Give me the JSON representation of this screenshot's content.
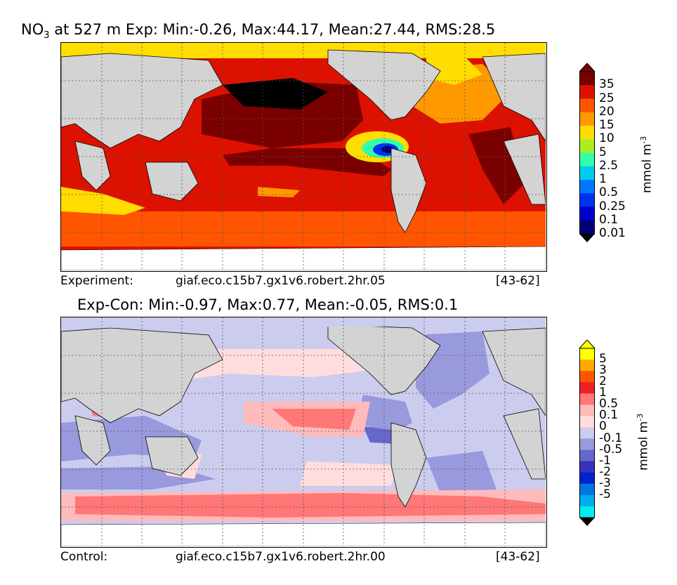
{
  "chart_data": [
    {
      "type": "heatmap",
      "title_prefix": "NO",
      "title_sub": "3",
      "title_rest": " at 527 m Exp: Min:-0.26, Max:44.17, Mean:27.44, RMS:28.5",
      "colorbar_label": "mmol m",
      "colorbar_exp": "-3",
      "levels": [
        "35",
        "25",
        "20",
        "15",
        "10",
        "5",
        "2.5",
        "1",
        "0.5",
        "0.25",
        "0.1",
        "0.01"
      ],
      "colors": [
        "#7a0000",
        "#dd1100",
        "#ff5500",
        "#ff9900",
        "#ffdd00",
        "#aaee22",
        "#33ffaa",
        "#00ccee",
        "#0077ff",
        "#0033ee",
        "#0000cc",
        "#000077"
      ],
      "footer_left": "Experiment:",
      "footer_mid": "giaf.eco.c15b7.gx1v6.robert.2hr.05",
      "footer_right": "[43-62]"
    },
    {
      "type": "heatmap",
      "title": "Exp-Con: Min:-0.97, Max:0.77, Mean:-0.05, RMS:0.1",
      "colorbar_label": "mmol m",
      "colorbar_exp": "-3",
      "levels": [
        "5",
        "3",
        "2",
        "1",
        "0.5",
        "0.1",
        "0",
        "-0.1",
        "-0.5",
        "-1",
        "-2",
        "-3",
        "-5"
      ],
      "colors": [
        "#ffff00",
        "#ffaa00",
        "#ff5500",
        "#ee2222",
        "#ff7777",
        "#ffbbbb",
        "#ffdddd",
        "#ccccee",
        "#9999dd",
        "#6666cc",
        "#3333bb",
        "#0022cc",
        "#0077dd",
        "#00aaee",
        "#00eeee"
      ],
      "footer_left": "Control:",
      "footer_mid": "giaf.eco.c15b7.gx1v6.robert.2hr.00",
      "footer_right": "[43-62]"
    }
  ]
}
